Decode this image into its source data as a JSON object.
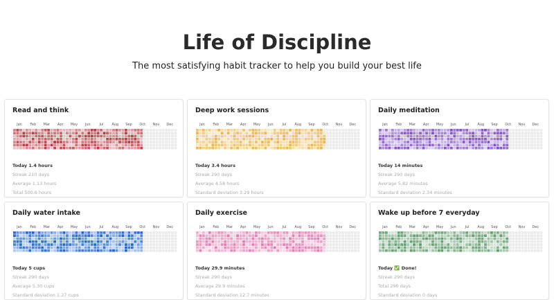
{
  "header": {
    "title": "Life of Discipline",
    "subtitle": "The most satisfying habit tracker to help you build your best life"
  },
  "months": [
    "Jan",
    "Feb",
    "Mar",
    "Apr",
    "May",
    "Jun",
    "Jul",
    "Aug",
    "Sep",
    "Oct",
    "Nov",
    "Dec"
  ],
  "cards": [
    {
      "title": "Read and think",
      "color": "#b5373f",
      "stats": [
        "Today 1.4 hours",
        "Streak 210 days",
        "Average 1.13 hours",
        "Total 500.6 hours"
      ]
    },
    {
      "title": "Deep work sessions",
      "color": "#e8b44a",
      "stats": [
        "Today 3.4 hours",
        "Streak 290 days",
        "Average 4.58 hours",
        "Standard deviation 3.29 hours"
      ]
    },
    {
      "title": "Daily meditation",
      "color": "#7f4fc2",
      "stats": [
        "Today 14 minutes",
        "Streak 290 days",
        "Average 5.82 minutes",
        "Standard deviation 2.34 minutes"
      ]
    },
    {
      "title": "Daily water intake",
      "color": "#1f64c8",
      "stats": [
        "Today 5 cups",
        "Streak 290 days",
        "Average 5.30 cups",
        "Standard deviation 1.27 cups"
      ]
    },
    {
      "title": "Daily exercise",
      "color": "#e07ab0",
      "stats": [
        "Today 29.9 minutes",
        "Streak 290 days",
        "Average 29.9 minutes",
        "Standard deviation 12.7 minutes"
      ]
    },
    {
      "title": "Wake up before 7 everyday",
      "color": "#5f9a6a",
      "stats": [
        "Today ✅ Done!",
        "Streak 290 days",
        "Total 290 days",
        "Standard deviation 0 days"
      ]
    }
  ]
}
